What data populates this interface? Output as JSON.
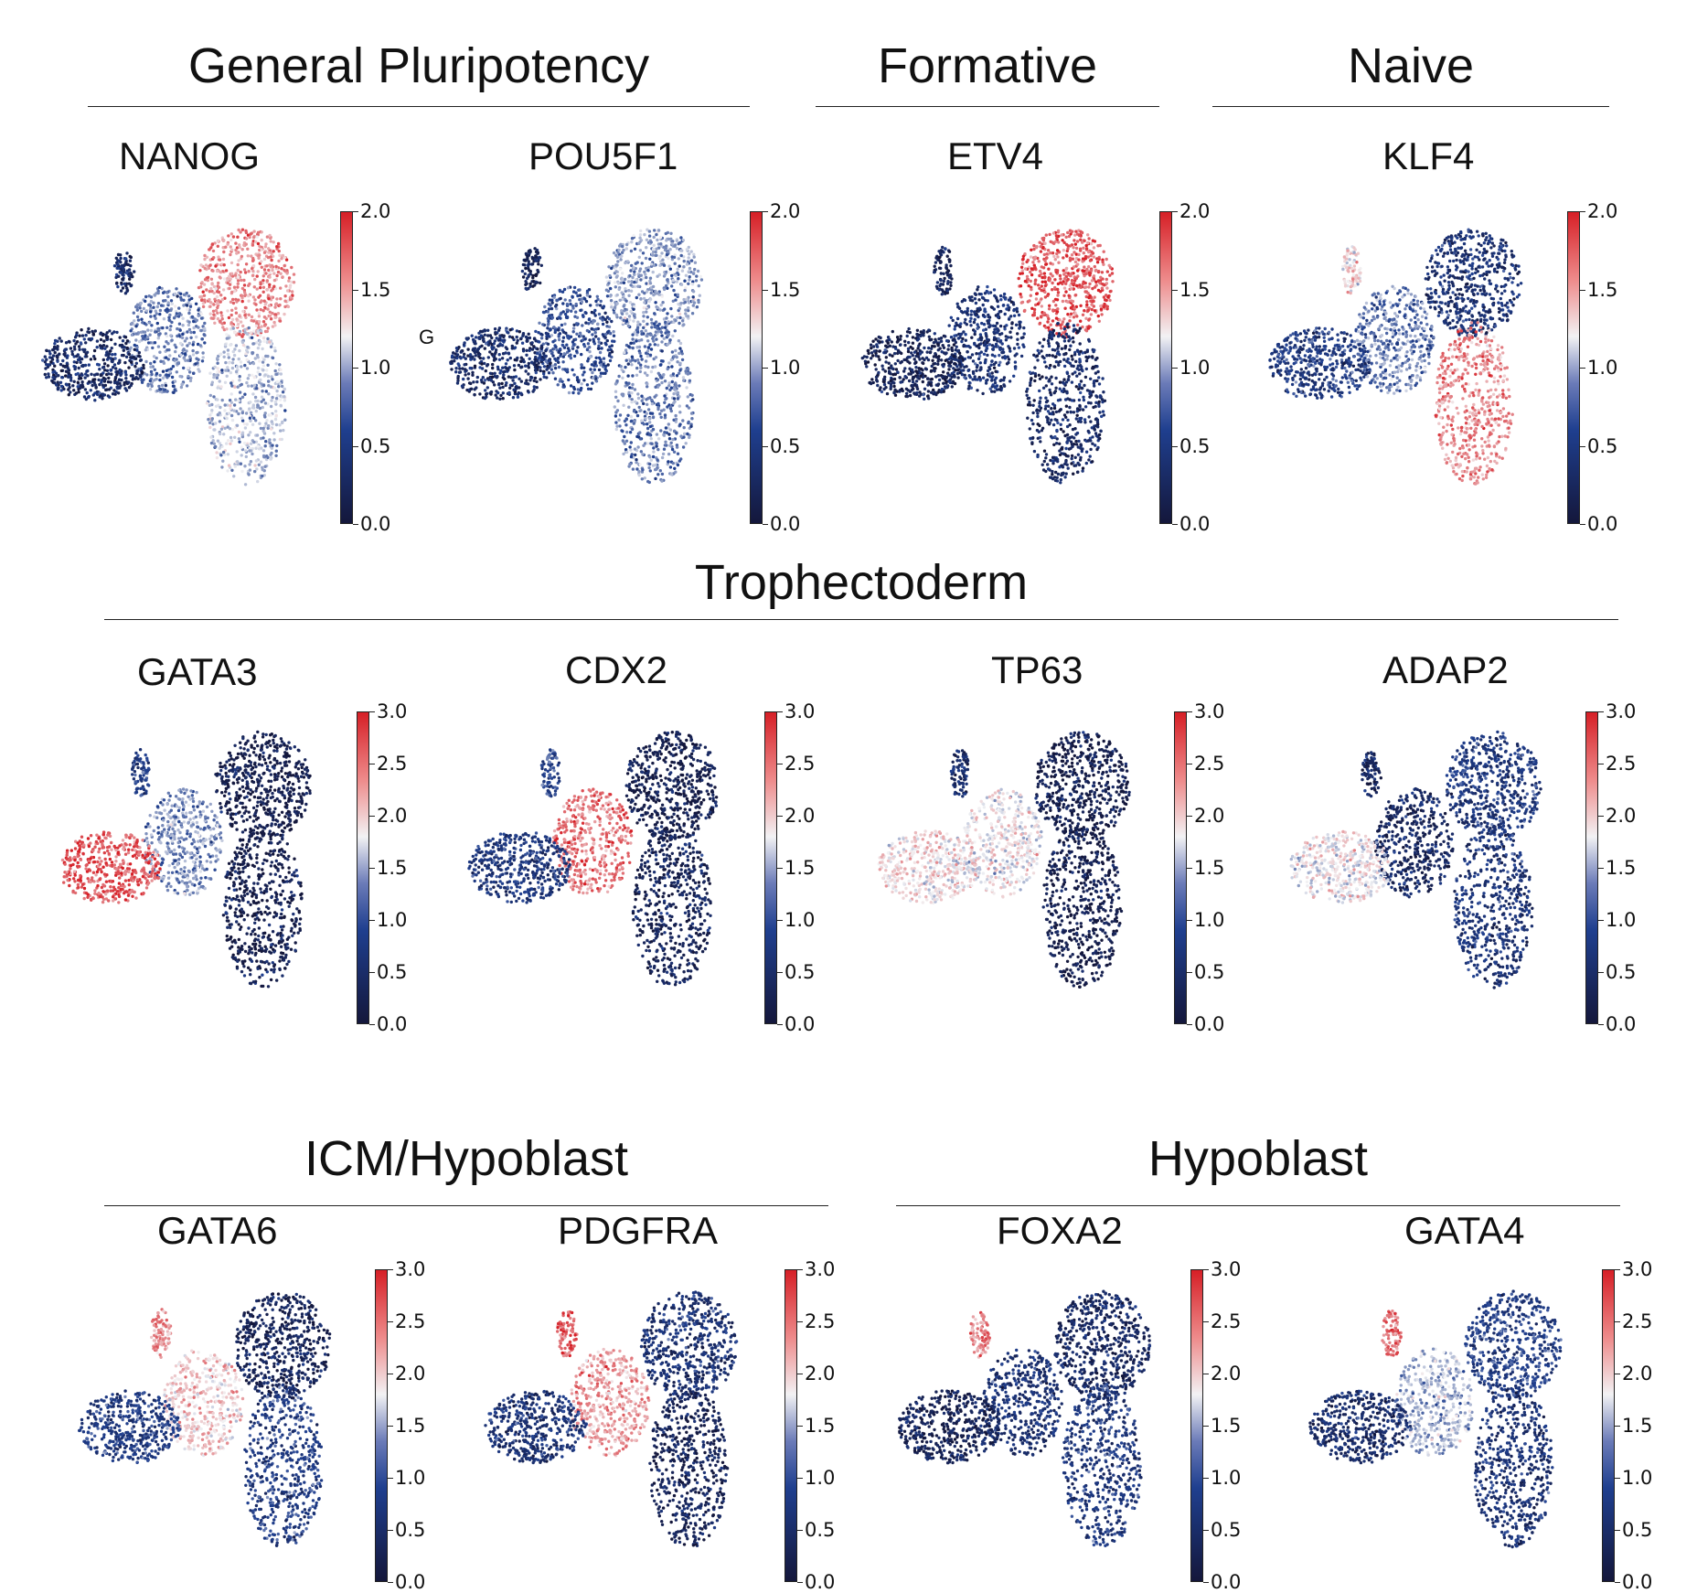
{
  "groups": [
    {
      "label": "General Pluripotency"
    },
    {
      "label": "Formative"
    },
    {
      "label": "Naive"
    },
    {
      "label": "Trophectoderm"
    },
    {
      "label": "ICM/Hypoblast"
    },
    {
      "label": "Hypoblast"
    }
  ],
  "stray_label": "G",
  "colormap": {
    "low": "#14173b",
    "mid_low": "#1f3f8f",
    "mid": "#f2f2f4",
    "high": "#d61f26"
  },
  "chart_data": [
    {
      "type": "scatter",
      "title": "NANOG",
      "colorbar": {
        "range": [
          0.0,
          2.0
        ],
        "ticks": [
          "0.0",
          "0.5",
          "1.0",
          "1.5",
          "2.0"
        ]
      },
      "expression": {
        "left_lobe": 0.3,
        "middle": 0.8,
        "upper_right": 1.6,
        "lower_right": 1.0,
        "tip": 0.3
      }
    },
    {
      "type": "scatter",
      "title": "POU5F1",
      "colorbar": {
        "range": [
          0.0,
          2.0
        ],
        "ticks": [
          "0.0",
          "0.5",
          "1.0",
          "1.5",
          "2.0"
        ]
      },
      "expression": {
        "left_lobe": 0.3,
        "middle": 0.6,
        "upper_right": 0.9,
        "lower_right": 0.8,
        "tip": 0.2
      }
    },
    {
      "type": "scatter",
      "title": "ETV4",
      "colorbar": {
        "range": [
          0.0,
          2.0
        ],
        "ticks": [
          "0.0",
          "0.5",
          "1.0",
          "1.5",
          "2.0"
        ]
      },
      "expression": {
        "left_lobe": 0.2,
        "middle": 0.4,
        "upper_right": 1.8,
        "lower_right": 0.3,
        "tip": 0.2
      }
    },
    {
      "type": "scatter",
      "title": "KLF4",
      "colorbar": {
        "range": [
          0.0,
          2.0
        ],
        "ticks": [
          "0.0",
          "0.5",
          "1.0",
          "1.5",
          "2.0"
        ]
      },
      "expression": {
        "left_lobe": 0.5,
        "middle": 0.8,
        "upper_right": 0.4,
        "lower_right": 1.6,
        "tip": 1.3
      }
    },
    {
      "type": "scatter",
      "title": "GATA3",
      "colorbar": {
        "range": [
          0.0,
          3.0
        ],
        "ticks": [
          "0.0",
          "0.5",
          "1.0",
          "1.5",
          "2.0",
          "2.5",
          "3.0"
        ]
      },
      "expression": {
        "left_lobe": 2.7,
        "middle": 1.3,
        "upper_right": 0.2,
        "lower_right": 0.2,
        "tip": 0.8
      }
    },
    {
      "type": "scatter",
      "title": "CDX2",
      "colorbar": {
        "range": [
          0.0,
          3.0
        ],
        "ticks": [
          "0.0",
          "0.5",
          "1.0",
          "1.5",
          "2.0",
          "2.5",
          "3.0"
        ]
      },
      "expression": {
        "left_lobe": 0.7,
        "middle": 2.5,
        "upper_right": 0.2,
        "lower_right": 0.3,
        "tip": 0.9
      }
    },
    {
      "type": "scatter",
      "title": "TP63",
      "colorbar": {
        "range": [
          0.0,
          3.0
        ],
        "ticks": [
          "0.0",
          "0.5",
          "1.0",
          "1.5",
          "2.0",
          "2.5",
          "3.0"
        ]
      },
      "expression": {
        "left_lobe": 1.9,
        "middle": 1.8,
        "upper_right": 0.2,
        "lower_right": 0.2,
        "tip": 0.5
      }
    },
    {
      "type": "scatter",
      "title": "ADAP2",
      "colorbar": {
        "range": [
          0.0,
          3.0
        ],
        "ticks": [
          "0.0",
          "0.5",
          "1.0",
          "1.5",
          "2.0",
          "2.5",
          "3.0"
        ]
      },
      "expression": {
        "left_lobe": 1.8,
        "middle": 0.4,
        "upper_right": 0.7,
        "lower_right": 0.6,
        "tip": 0.3
      }
    },
    {
      "type": "scatter",
      "title": "GATA6",
      "colorbar": {
        "range": [
          0.0,
          3.0
        ],
        "ticks": [
          "0.0",
          "0.5",
          "1.0",
          "1.5",
          "2.0",
          "2.5",
          "3.0"
        ]
      },
      "expression": {
        "left_lobe": 0.8,
        "middle": 2.0,
        "upper_right": 0.3,
        "lower_right": 0.8,
        "tip": 2.4
      }
    },
    {
      "type": "scatter",
      "title": "PDGFRA",
      "colorbar": {
        "range": [
          0.0,
          3.0
        ],
        "ticks": [
          "0.0",
          "0.5",
          "1.0",
          "1.5",
          "2.0",
          "2.5",
          "3.0"
        ]
      },
      "expression": {
        "left_lobe": 0.6,
        "middle": 2.3,
        "upper_right": 0.6,
        "lower_right": 0.3,
        "tip": 2.7
      }
    },
    {
      "type": "scatter",
      "title": "FOXA2",
      "colorbar": {
        "range": [
          0.0,
          3.0
        ],
        "ticks": [
          "0.0",
          "0.5",
          "1.0",
          "1.5",
          "2.0",
          "2.5",
          "3.0"
        ]
      },
      "expression": {
        "left_lobe": 0.3,
        "middle": 0.6,
        "upper_right": 0.4,
        "lower_right": 0.7,
        "tip": 2.4
      }
    },
    {
      "type": "scatter",
      "title": "GATA4",
      "colorbar": {
        "range": [
          0.0,
          3.0
        ],
        "ticks": [
          "0.0",
          "0.5",
          "1.0",
          "1.5",
          "2.0",
          "2.5",
          "3.0"
        ]
      },
      "expression": {
        "left_lobe": 0.5,
        "middle": 1.5,
        "upper_right": 0.8,
        "lower_right": 0.6,
        "tip": 2.5
      }
    }
  ]
}
